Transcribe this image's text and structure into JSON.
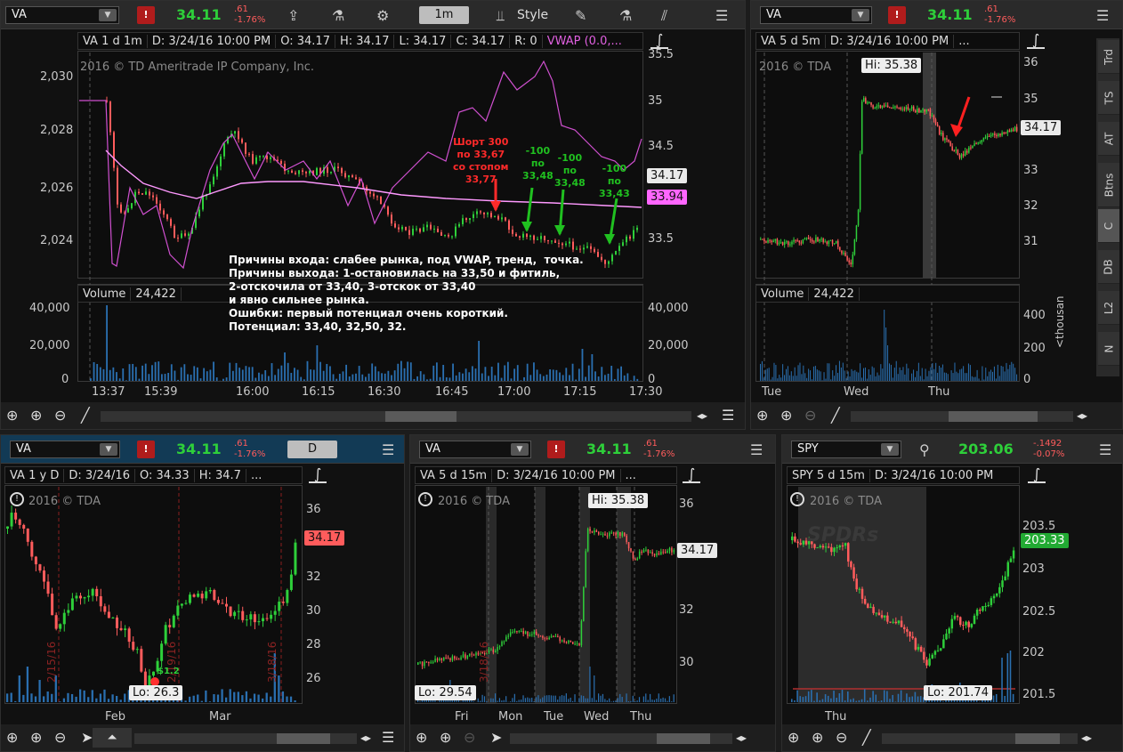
{
  "colors": {
    "up": "#2ecf3a",
    "down": "#ff5c5c",
    "vwap": "#d050d0",
    "ma": "#ff99ff",
    "vol": "#2a6fb0",
    "lo": "#c8c8c8"
  },
  "toolbar_icons": [
    "share-icon",
    "flask-icon",
    "gear-icon",
    "style-icon",
    "pencil-icon",
    "flask-icon",
    "drawing-icon",
    "menu-icon"
  ],
  "p1": {
    "symbol": "VA",
    "flag": "!",
    "price": "34.11",
    "change": ".61",
    "change_pct": "-1.76%",
    "period": "1m",
    "style_label": "Style",
    "info": {
      "name": "VA 1 d 1m",
      "date": "D: 3/24/16 10:00 PM",
      "open": "O: 34.17",
      "high": "H: 34.17",
      "low": "L: 34.17",
      "close": "C: 34.17",
      "range": "R: 0",
      "vwap": "VWAP (0.0,..."
    },
    "watermark": "2016 © TD Ameritrade IP Company, Inc.",
    "left_axis": [
      "2,030",
      "2,028",
      "2,026",
      "2,024"
    ],
    "right_axis": [
      "35.5",
      "35",
      "34.5",
      "34",
      "33.5"
    ],
    "last_label": "34.17",
    "ma_label": "33.94",
    "volume_title": "Volume",
    "volume_value": "24,422",
    "vol_left": [
      "40,000",
      "20,000",
      "0"
    ],
    "vol_right": [
      "40,000",
      "20,000",
      "0"
    ],
    "x_labels": [
      "13:37",
      "15:39",
      "16:00",
      "16:15",
      "16:30",
      "16:45",
      "17:00",
      "17:15",
      "17:30"
    ],
    "annotations": {
      "short": "Шорт 300\nпо 33,67\nсо стопом\n33,77",
      "c1": "-100\nпо\n33,48",
      "c2": "-100\nпо\n33,48",
      "c3": "-100\nпо\n33,43"
    },
    "note": "Причины входа: слабее рынка, под VWAP, тренд,  точка.\nПричины выхода: 1-остановилась на 33,50 и фитиль,\n2-отскочила от 33,40, 3-отскок от 33,40\nи явно сильнее рынка.\nОшибки: первый потенциал очень короткий.\nПотенциал: 33,40, 32,50, 32."
  },
  "p2": {
    "symbol": "VA",
    "flag": "!",
    "price": "34.11",
    "change": ".61",
    "change_pct": "-1.76%",
    "info": {
      "name": "VA 5 d 5m",
      "date": "D: 3/24/16 10:00 PM",
      "more": "..."
    },
    "watermark": "2016 © TDA",
    "hi_label": "Hi: 35.38",
    "right_axis": [
      "36",
      "35",
      "34",
      "33",
      "32",
      "31"
    ],
    "last_label": "34.17",
    "volume_title": "Volume",
    "volume_value": "24,422",
    "vol_axis": [
      "400",
      "200",
      "0"
    ],
    "vol_unit": "<thousan",
    "x_labels": [
      "Tue",
      "Wed",
      "Thu"
    ],
    "side_tabs": [
      "Trd",
      "TS",
      "AT",
      "Btns",
      "C",
      "DB",
      "L2",
      "N"
    ]
  },
  "p3": {
    "symbol": "VA",
    "flag": "!",
    "price": "34.11",
    "change": ".61",
    "change_pct": "-1.76%",
    "period": "D",
    "info": {
      "name": "VA 1 y D",
      "date": "D: 3/24/16",
      "open": "O: 34.33",
      "high": "H: 34.7",
      "more": "..."
    },
    "watermark": "2016 © TDA",
    "lo_label": "Lo: 26.3",
    "right_axis": [
      "36",
      "34",
      "32",
      "30",
      "28",
      "26"
    ],
    "last_label": "34.17",
    "x_labels": [
      "Feb",
      "Mar"
    ],
    "events": [
      "2/15/16",
      "2/19/16",
      "3/18/16"
    ],
    "dividend": "$1.2"
  },
  "p4": {
    "symbol": "VA",
    "flag": "!",
    "price": "34.11",
    "change": ".61",
    "change_pct": "-1.76%",
    "info": {
      "name": "VA 5 d 15m",
      "date": "D: 3/24/16 10:00 PM",
      "more": "..."
    },
    "watermark": "2016 © TDA",
    "hi_label": "Hi: 35.38",
    "lo_label": "Lo: 29.54",
    "right_axis": [
      "36",
      "34",
      "32",
      "30"
    ],
    "last_label": "34.17",
    "x_labels": [
      "Fri",
      "Mon",
      "Tue",
      "Wed",
      "Thu"
    ],
    "event": "3/18/16"
  },
  "p5": {
    "symbol": "SPY",
    "price": "203.06",
    "change": "-.1492",
    "change_pct": "-0.07%",
    "info": {
      "name": "SPY 5 d 15m",
      "date": "D: 3/24/16 10:00 PM"
    },
    "watermark": "2016 © TDA",
    "logo": "SPDRs",
    "lo_label": "Lo: 201.74",
    "right_axis": [
      "203.5",
      "203",
      "202.5",
      "202",
      "201.5"
    ],
    "last_label": "203.33",
    "x_labels": [
      "Thu"
    ]
  }
}
